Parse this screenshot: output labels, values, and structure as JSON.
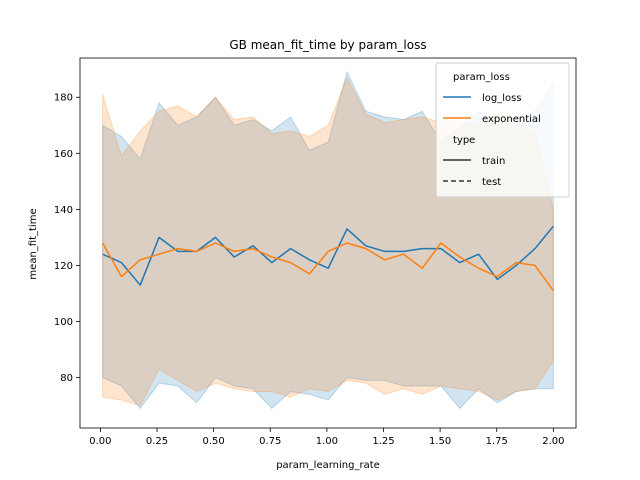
{
  "chart_data": {
    "type": "line",
    "title": "GB mean_fit_time by param_loss",
    "xlabel": "param_learning_rate",
    "ylabel": "mean_fit_time",
    "xlim": [
      -0.09,
      2.1
    ],
    "ylim": [
      62,
      194
    ],
    "xticks": [
      "0.00",
      "0.25",
      "0.50",
      "0.75",
      "1.00",
      "1.25",
      "1.50",
      "1.75",
      "2.00"
    ],
    "xtick_values": [
      0,
      0.25,
      0.5,
      0.75,
      1.0,
      1.25,
      1.5,
      1.75,
      2.0
    ],
    "yticks": [
      "80",
      "100",
      "120",
      "140",
      "160",
      "180"
    ],
    "ytick_values": [
      80,
      100,
      120,
      140,
      160,
      180
    ],
    "x": [
      0.01,
      0.093,
      0.176,
      0.259,
      0.342,
      0.425,
      0.508,
      0.591,
      0.674,
      0.757,
      0.84,
      0.923,
      1.006,
      1.089,
      1.172,
      1.255,
      1.338,
      1.421,
      1.504,
      1.587,
      1.67,
      1.753,
      1.836,
      1.919,
      2.0
    ],
    "series": [
      {
        "name": "log_loss",
        "color": "#1f77b4",
        "values": [
          124,
          121,
          113,
          130,
          125,
          125,
          130,
          123,
          127,
          121,
          126,
          122,
          119,
          133,
          127,
          125,
          125,
          126,
          126,
          121,
          124,
          115,
          120,
          126,
          134
        ],
        "upper": [
          170,
          166,
          158,
          178,
          170,
          173,
          180,
          170,
          172,
          168,
          173,
          161,
          164,
          189,
          175,
          173,
          172,
          175,
          164,
          169,
          175,
          170,
          173,
          175,
          185
        ],
        "lower": [
          80,
          77,
          69,
          78,
          77,
          71,
          80,
          77,
          76,
          69,
          75,
          74,
          72,
          80,
          79,
          79,
          77,
          77,
          77,
          69,
          76,
          71,
          75,
          76,
          76
        ]
      },
      {
        "name": "exponential",
        "color": "#ff7f0e",
        "values": [
          128,
          116,
          122,
          124,
          126,
          125,
          128,
          125,
          126,
          123,
          121,
          117,
          125,
          128,
          126,
          122,
          124,
          119,
          128,
          123,
          119,
          116,
          121,
          120,
          111
        ],
        "upper": [
          181,
          159,
          168,
          175,
          177,
          173,
          180,
          172,
          173,
          167,
          168,
          166,
          170,
          187,
          174,
          171,
          172,
          173,
          171,
          171,
          170,
          174,
          171,
          167,
          140
        ],
        "lower": [
          73,
          72,
          70,
          83,
          79,
          75,
          78,
          76,
          75,
          75,
          73,
          76,
          75,
          79,
          78,
          74,
          76,
          74,
          77,
          76,
          75,
          72,
          75,
          76,
          86
        ]
      }
    ],
    "legend": {
      "title": "param_loss",
      "entries": [
        "log_loss",
        "exponential"
      ],
      "style_title": "type",
      "style_entries": [
        "train",
        "test"
      ],
      "placement": "top-right"
    },
    "grid": false
  }
}
